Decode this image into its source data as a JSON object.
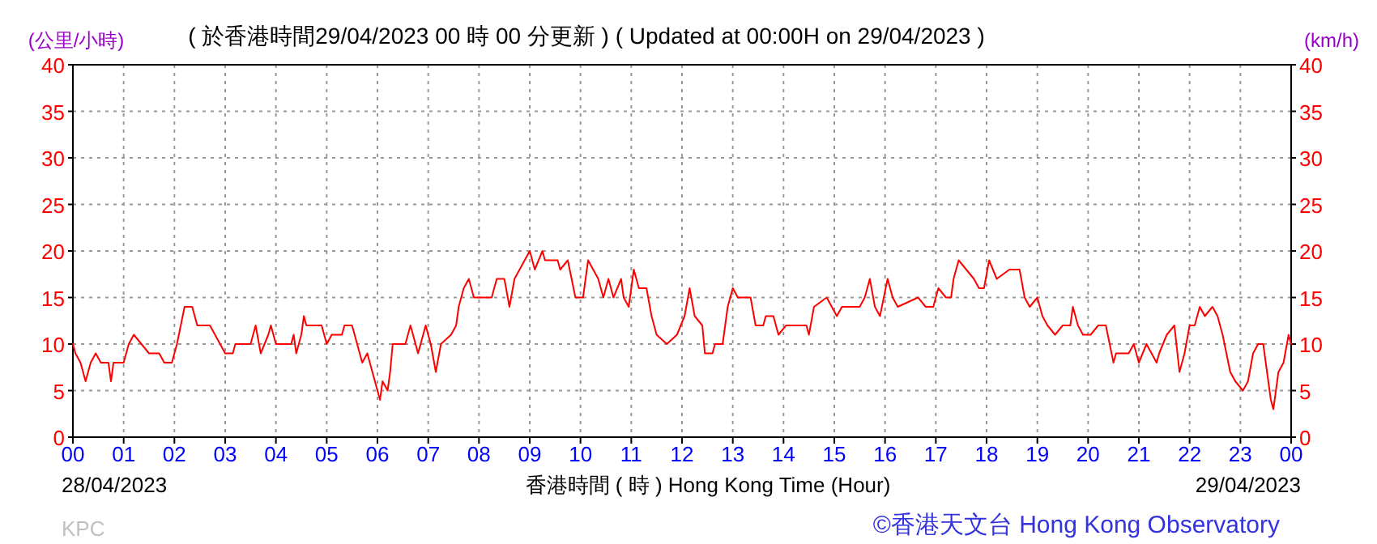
{
  "chart_data": {
    "type": "line",
    "title": "( 於香港時間29/04/2023 00 時 00 分更新 ) ( Updated at 00:00H on 29/04/2023 )",
    "xlabel": "香港時間 ( 時 ) Hong Kong Time (Hour)",
    "ylabel": "(公里/小時)",
    "y2label": "(km/h)",
    "annotations": [
      "28/04/2023",
      "29/04/2023",
      "KPC",
      "©香港天文台 Hong Kong Observatory"
    ],
    "xlim": [
      0,
      24
    ],
    "xticks": [
      {
        "value": 0,
        "label": "00"
      },
      {
        "value": 1,
        "label": "01"
      },
      {
        "value": 2,
        "label": "02"
      },
      {
        "value": 3,
        "label": "03"
      },
      {
        "value": 4,
        "label": "04"
      },
      {
        "value": 5,
        "label": "05"
      },
      {
        "value": 6,
        "label": "06"
      },
      {
        "value": 7,
        "label": "07"
      },
      {
        "value": 8,
        "label": "08"
      },
      {
        "value": 9,
        "label": "09"
      },
      {
        "value": 10,
        "label": "10"
      },
      {
        "value": 11,
        "label": "11"
      },
      {
        "value": 12,
        "label": "12"
      },
      {
        "value": 13,
        "label": "13"
      },
      {
        "value": 14,
        "label": "14"
      },
      {
        "value": 15,
        "label": "15"
      },
      {
        "value": 16,
        "label": "16"
      },
      {
        "value": 17,
        "label": "17"
      },
      {
        "value": 18,
        "label": "18"
      },
      {
        "value": 19,
        "label": "19"
      },
      {
        "value": 20,
        "label": "20"
      },
      {
        "value": 21,
        "label": "21"
      },
      {
        "value": 22,
        "label": "22"
      },
      {
        "value": 23,
        "label": "23"
      },
      {
        "value": 24,
        "label": "00"
      }
    ],
    "ylim": [
      0,
      40
    ],
    "yticks": [
      0,
      5,
      10,
      15,
      20,
      25,
      30,
      35,
      40
    ],
    "y2lim": [
      0,
      40
    ],
    "y2ticks": [
      0,
      5,
      10,
      15,
      20,
      25,
      30,
      35,
      40
    ],
    "grid": true,
    "marker": "none",
    "line_style": "solid",
    "series": [
      {
        "color": "#ff0000",
        "x": [
          0,
          0.05,
          0.15,
          0.25,
          0.35,
          0.45,
          0.55,
          0.7,
          0.75,
          0.8,
          1.0,
          1.1,
          1.2,
          1.35,
          1.5,
          1.7,
          1.8,
          1.95,
          2.05,
          2.2,
          2.35,
          2.45,
          2.7,
          2.8,
          3.0,
          3.15,
          3.2,
          3.4,
          3.5,
          3.6,
          3.7,
          3.85,
          3.9,
          4.0,
          4.3,
          4.35,
          4.4,
          4.45,
          4.5,
          4.55,
          4.6,
          4.9,
          5.0,
          5.1,
          5.3,
          5.35,
          5.5,
          5.6,
          5.7,
          5.8,
          5.9,
          6.0,
          6.05,
          6.1,
          6.2,
          6.25,
          6.3,
          6.55,
          6.65,
          6.75,
          6.8,
          6.95,
          7.05,
          7.15,
          7.25,
          7.45,
          7.55,
          7.6,
          7.7,
          7.8,
          7.9,
          8.25,
          8.35,
          8.5,
          8.6,
          8.7,
          8.8,
          8.9,
          9.0,
          9.1,
          9.25,
          9.3,
          9.55,
          9.6,
          9.75,
          9.9,
          10.05,
          10.15,
          10.25,
          10.35,
          10.45,
          10.55,
          10.65,
          10.8,
          10.85,
          10.95,
          11.05,
          11.15,
          11.3,
          11.4,
          11.5,
          11.7,
          11.9,
          12.05,
          12.15,
          12.25,
          12.4,
          12.45,
          12.6,
          12.65,
          12.8,
          12.9,
          13.0,
          13.1,
          13.35,
          13.45,
          13.6,
          13.65,
          13.8,
          13.9,
          14.05,
          14.45,
          14.5,
          14.6,
          14.85,
          15.05,
          15.15,
          15.5,
          15.6,
          15.7,
          15.8,
          15.9,
          16.05,
          16.15,
          16.25,
          16.65,
          16.8,
          16.95,
          17.05,
          17.2,
          17.3,
          17.35,
          17.45,
          17.6,
          17.75,
          17.85,
          17.95,
          18.05,
          18.2,
          18.45,
          18.65,
          18.75,
          18.85,
          19.0,
          19.1,
          19.2,
          19.35,
          19.5,
          19.65,
          19.7,
          19.8,
          19.9,
          20.05,
          20.2,
          20.35,
          20.5,
          20.55,
          20.8,
          20.9,
          21.0,
          21.15,
          21.25,
          21.35,
          21.4,
          21.55,
          21.7,
          21.8,
          21.9,
          22.0,
          22.1,
          22.2,
          22.3,
          22.45,
          22.55,
          22.65,
          22.8,
          22.9,
          23.05,
          23.15,
          23.25,
          23.35,
          23.45,
          23.6,
          23.65,
          23.75,
          23.85,
          23.95,
          24.0
        ],
        "values": [
          10,
          9,
          8,
          6,
          8,
          9,
          8,
          8,
          6,
          8,
          8,
          10,
          11,
          10,
          9,
          9,
          8,
          8,
          10,
          14,
          14,
          12,
          12,
          11,
          9,
          9,
          10,
          10,
          10,
          12,
          9,
          11,
          12,
          10,
          10,
          11,
          9,
          10,
          11,
          13,
          12,
          12,
          10,
          11,
          11,
          12,
          12,
          10,
          8,
          9,
          7,
          5,
          4,
          6,
          5,
          7,
          10,
          10,
          12,
          10,
          9,
          12,
          10,
          7,
          10,
          11,
          12,
          14,
          16,
          17,
          15,
          15,
          17,
          17,
          14,
          17,
          18,
          19,
          20,
          18,
          20,
          19,
          19,
          18,
          19,
          15,
          15,
          19,
          18,
          17,
          15,
          17,
          15,
          17,
          15,
          14,
          18,
          16,
          16,
          13,
          11,
          10,
          11,
          13,
          16,
          13,
          12,
          9,
          9,
          10,
          10,
          14,
          16,
          15,
          15,
          12,
          12,
          13,
          13,
          11,
          12,
          12,
          11,
          14,
          15,
          13,
          14,
          14,
          15,
          17,
          14,
          13,
          17,
          15,
          14,
          15,
          14,
          14,
          16,
          15,
          15,
          17,
          19,
          18,
          17,
          16,
          16,
          19,
          17,
          18,
          18,
          15,
          14,
          15,
          13,
          12,
          11,
          12,
          12,
          14,
          12,
          11,
          11,
          12,
          12,
          8,
          9,
          9,
          10,
          8,
          10,
          9,
          8,
          9,
          11,
          12,
          7,
          9,
          12,
          12,
          14,
          13,
          14,
          13,
          11,
          7,
          6,
          5,
          6,
          9,
          10,
          10,
          4,
          3,
          7,
          8,
          11,
          10
        ]
      }
    ]
  }
}
